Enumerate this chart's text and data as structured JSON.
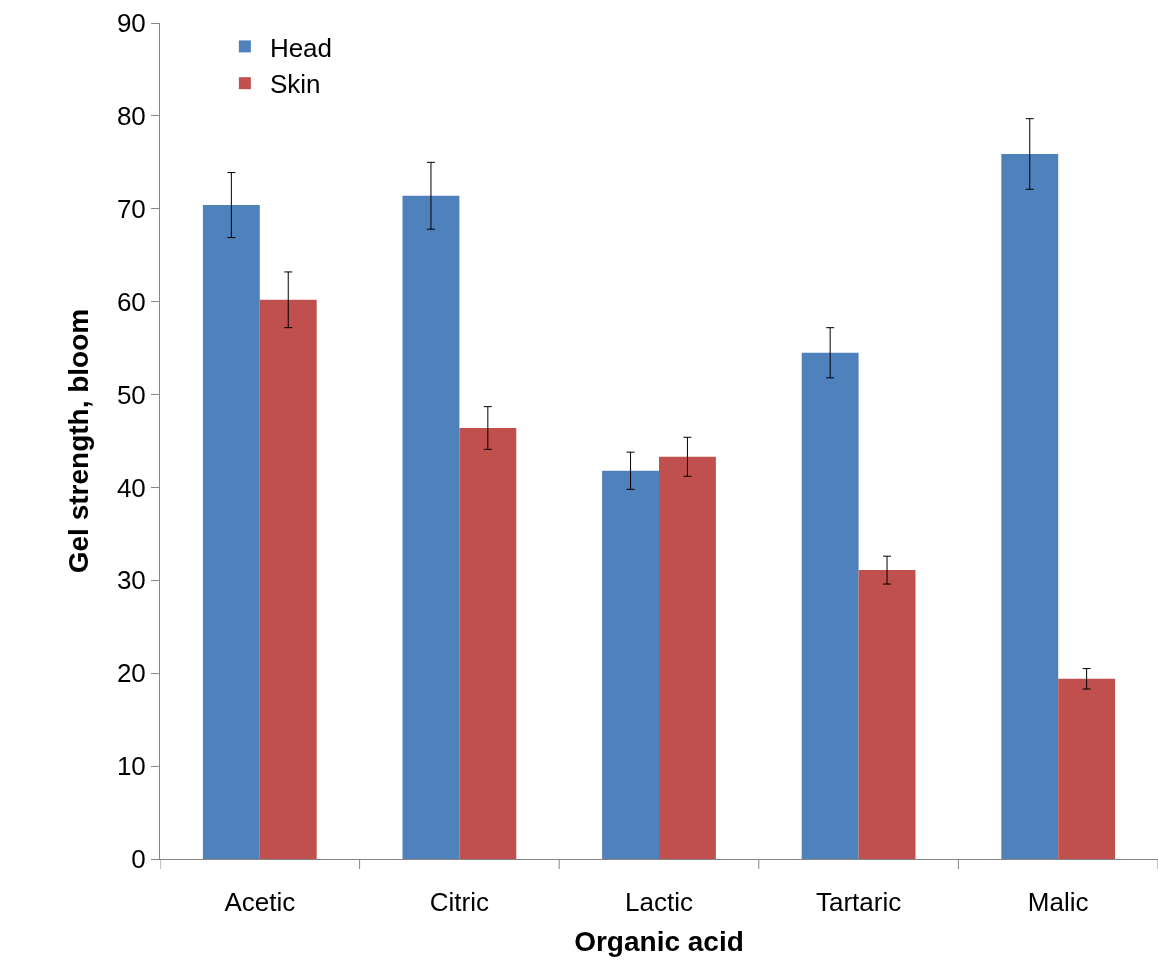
{
  "chart_data": {
    "type": "bar",
    "xlabel": "Organic acid",
    "ylabel": "Gel strength, bloom",
    "categories": [
      "Acetic",
      "Citric",
      "Lactic",
      "Tartaric",
      "Malic"
    ],
    "series": [
      {
        "name": "Head",
        "color": "#4f81bd",
        "values": [
          70.4,
          71.4,
          41.8,
          54.5,
          75.9
        ],
        "errors": [
          3.5,
          3.6,
          2.0,
          2.7,
          3.8
        ]
      },
      {
        "name": "Skin",
        "color": "#c0504d",
        "values": [
          60.2,
          46.4,
          43.3,
          31.1,
          19.4
        ],
        "errors": [
          3.0,
          2.3,
          2.1,
          1.5,
          1.1
        ]
      }
    ],
    "ylim": [
      0,
      90
    ],
    "yticks": [
      0,
      10,
      20,
      30,
      40,
      50,
      60,
      70,
      80,
      90
    ],
    "grid": false,
    "legend": "top left"
  }
}
